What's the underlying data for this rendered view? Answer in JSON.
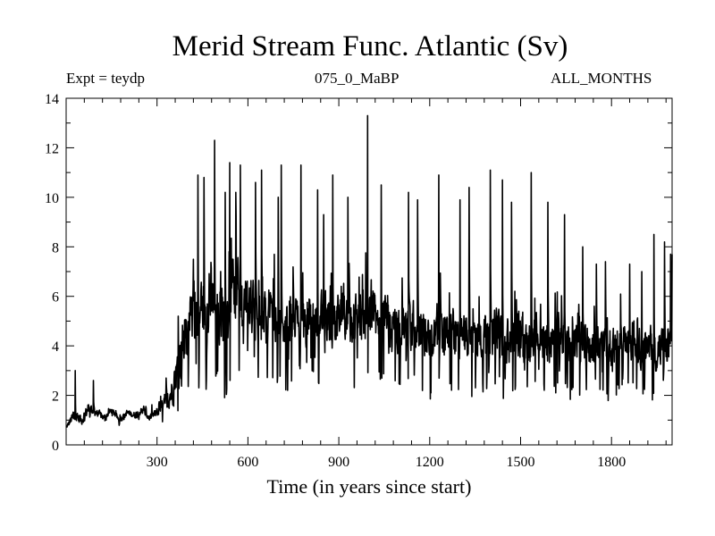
{
  "chart_data": {
    "type": "line",
    "title": "Merid Stream Func. Atlantic (Sv)",
    "subtitle_left": "Expt = teydp",
    "subtitle_center": "075_0_MaBP",
    "subtitle_right": "ALL_MONTHS",
    "xlabel": "Time (in years since start)",
    "ylabel": "",
    "xlim": [
      0,
      2000
    ],
    "ylim": [
      0,
      14
    ],
    "xticks": [
      300,
      600,
      900,
      1200,
      1500,
      1800
    ],
    "yticks": [
      0,
      2,
      4,
      6,
      8,
      10,
      12,
      14
    ],
    "grid": false,
    "series": [
      {
        "name": "Merid Stream Func. Atlantic",
        "color": "#000000",
        "x": [
          0,
          25,
          50,
          75,
          100,
          125,
          150,
          175,
          200,
          225,
          250,
          275,
          300,
          325,
          350,
          375,
          400,
          425,
          450,
          475,
          500,
          525,
          550,
          575,
          600,
          625,
          650,
          675,
          700,
          725,
          750,
          775,
          800,
          825,
          850,
          875,
          900,
          925,
          950,
          975,
          1000,
          1025,
          1050,
          1075,
          1100,
          1125,
          1150,
          1175,
          1200,
          1225,
          1250,
          1275,
          1300,
          1325,
          1350,
          1375,
          1400,
          1425,
          1450,
          1475,
          1500,
          1525,
          1550,
          1575,
          1600,
          1625,
          1650,
          1675,
          1700,
          1725,
          1750,
          1775,
          1800,
          1825,
          1850,
          1875,
          1900,
          1925,
          1950,
          1975,
          2000
        ],
        "y": [
          0.7,
          1.2,
          1.0,
          1.5,
          1.3,
          1.1,
          1.4,
          1.0,
          1.3,
          1.2,
          1.4,
          1.1,
          1.3,
          1.6,
          2.2,
          3.5,
          4.8,
          5.5,
          5.2,
          6.0,
          5.6,
          5.0,
          6.2,
          5.4,
          5.8,
          5.2,
          4.8,
          5.5,
          5.0,
          4.6,
          5.3,
          4.8,
          5.2,
          4.9,
          5.4,
          5.0,
          4.7,
          5.3,
          5.0,
          4.8,
          5.6,
          4.9,
          5.2,
          4.7,
          5.0,
          4.6,
          4.9,
          4.5,
          4.2,
          4.8,
          4.4,
          4.7,
          4.1,
          4.5,
          4.3,
          4.6,
          4.2,
          4.8,
          4.0,
          4.4,
          4.6,
          4.1,
          4.5,
          4.2,
          4.0,
          4.6,
          4.3,
          4.0,
          4.4,
          3.9,
          4.3,
          4.1,
          3.8,
          4.2,
          3.9,
          4.4,
          3.8,
          4.1,
          3.7,
          3.9,
          4.2
        ],
        "spread": [
          0.1,
          0.6,
          0.5,
          0.6,
          0.4,
          0.3,
          0.3,
          0.3,
          0.3,
          0.3,
          0.4,
          0.4,
          0.5,
          0.8,
          1.5,
          2.5,
          3.0,
          3.2,
          3.0,
          3.2,
          3.0,
          3.2,
          3.0,
          3.0,
          2.8,
          2.8,
          2.6,
          2.6,
          2.6,
          2.5,
          2.6,
          2.5,
          2.5,
          2.5,
          2.5,
          2.4,
          2.4,
          2.5,
          2.5,
          2.5,
          2.6,
          2.5,
          2.4,
          2.4,
          2.4,
          2.3,
          2.4,
          2.3,
          2.3,
          2.3,
          2.2,
          2.3,
          2.2,
          2.3,
          2.2,
          2.3,
          2.2,
          2.2,
          2.2,
          2.2,
          2.2,
          2.1,
          2.2,
          2.1,
          2.1,
          2.2,
          2.1,
          2.1,
          2.1,
          2.1,
          2.1,
          2.0,
          2.0,
          2.1,
          2.0,
          2.1,
          2.0,
          2.0,
          2.0,
          2.0,
          2.0
        ],
        "peaks": [
          [
            30,
            3.0
          ],
          [
            90,
            2.6
          ],
          [
            330,
            2.7
          ],
          [
            370,
            5.2
          ],
          [
            420,
            7.5
          ],
          [
            435,
            10.9
          ],
          [
            455,
            10.8
          ],
          [
            490,
            12.3
          ],
          [
            525,
            10.2
          ],
          [
            540,
            11.4
          ],
          [
            560,
            10.2
          ],
          [
            575,
            11.3
          ],
          [
            625,
            10.6
          ],
          [
            645,
            11.1
          ],
          [
            700,
            10.0
          ],
          [
            710,
            11.3
          ],
          [
            775,
            11.3
          ],
          [
            830,
            10.3
          ],
          [
            850,
            9.3
          ],
          [
            880,
            10.9
          ],
          [
            930,
            10.0
          ],
          [
            995,
            13.3
          ],
          [
            1040,
            10.5
          ],
          [
            1130,
            10.2
          ],
          [
            1160,
            9.9
          ],
          [
            1230,
            10.9
          ],
          [
            1300,
            9.9
          ],
          [
            1330,
            10.4
          ],
          [
            1400,
            11.1
          ],
          [
            1440,
            10.7
          ],
          [
            1470,
            9.8
          ],
          [
            1535,
            11.0
          ],
          [
            1590,
            9.8
          ],
          [
            1645,
            9.3
          ],
          [
            1705,
            8.0
          ],
          [
            1750,
            7.3
          ],
          [
            1780,
            7.4
          ],
          [
            1860,
            7.3
          ],
          [
            1900,
            7.0
          ],
          [
            1940,
            8.5
          ],
          [
            1975,
            8.2
          ],
          [
            1995,
            7.7
          ]
        ]
      }
    ],
    "tail_value": 7.7
  }
}
